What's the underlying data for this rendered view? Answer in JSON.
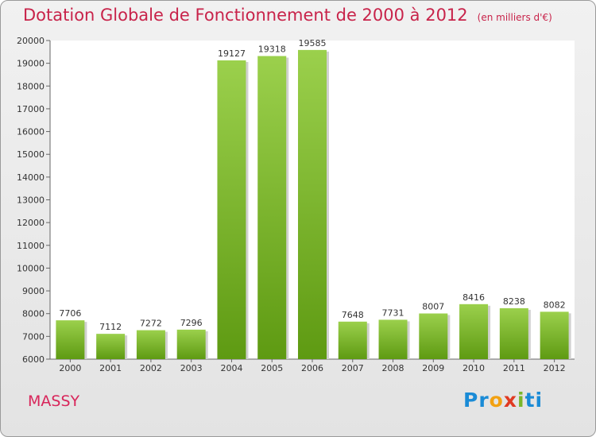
{
  "title": "Dotation Globale de Fonctionnement de 2000 à 2012",
  "subtitle": "(en milliers d'€)",
  "city": "MASSY",
  "logo": {
    "p1": "Pr",
    "p2": "o",
    "p3": "x",
    "p4": "i",
    "p5": "ti"
  },
  "colors": {
    "bar_top": "#9bd04c",
    "bar_bottom": "#5e9a12",
    "title": "#c8234a"
  },
  "chart_data": {
    "type": "bar",
    "categories": [
      "2000",
      "2001",
      "2002",
      "2003",
      "2004",
      "2005",
      "2006",
      "2007",
      "2008",
      "2009",
      "2010",
      "2011",
      "2012"
    ],
    "values": [
      7706,
      7112,
      7272,
      7296,
      19127,
      19318,
      19585,
      7648,
      7731,
      8007,
      8416,
      8238,
      8082
    ],
    "ylim": [
      6000,
      20000
    ],
    "yticks": [
      6000,
      7000,
      8000,
      9000,
      10000,
      11000,
      12000,
      13000,
      14000,
      15000,
      16000,
      17000,
      18000,
      19000,
      20000
    ],
    "grid": false,
    "legend": "none"
  }
}
